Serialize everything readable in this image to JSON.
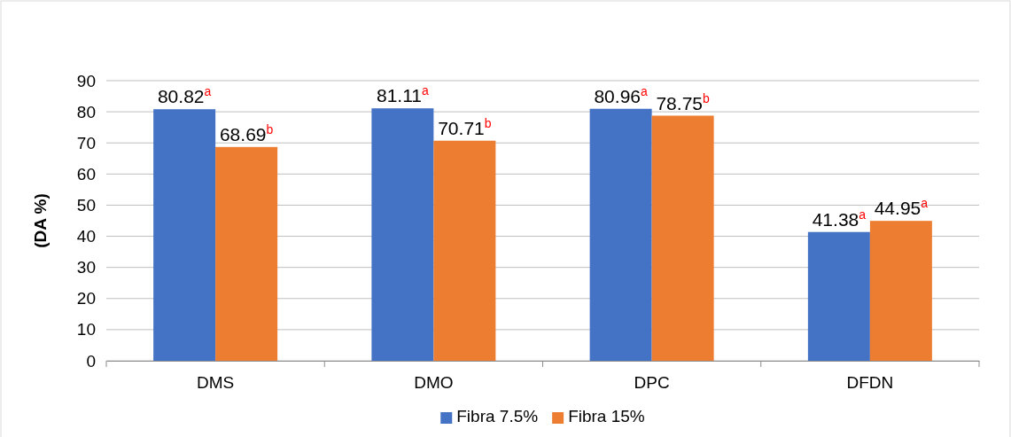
{
  "chart_data": {
    "type": "bar",
    "ylabel": "(DA %)",
    "categories": [
      "DMS",
      "DMO",
      "DPC",
      "DFDN"
    ],
    "series": [
      {
        "name": "Fibra 7.5%",
        "color": "#4472c4",
        "values": [
          80.82,
          81.11,
          80.96,
          41.38
        ],
        "value_labels": [
          "80.82$^{a}$",
          "81.11$^{a}$",
          "80.96$^{a}$",
          "41.38$^{a}$"
        ]
      },
      {
        "name": "Fibra 15%",
        "color": "#ed7d31",
        "values": [
          68.69,
          70.71,
          78.75,
          44.95
        ],
        "value_labels": [
          "68.69$^{b}$",
          "70.71$^{b}$",
          "78.75$^{b}$",
          "44.95$^{a}$"
        ]
      }
    ],
    "ylim": [
      0,
      90
    ],
    "yticks": [
      0,
      10,
      20,
      30,
      40,
      50,
      60,
      70,
      80,
      90
    ],
    "grid": "y",
    "legend": "bottom"
  }
}
